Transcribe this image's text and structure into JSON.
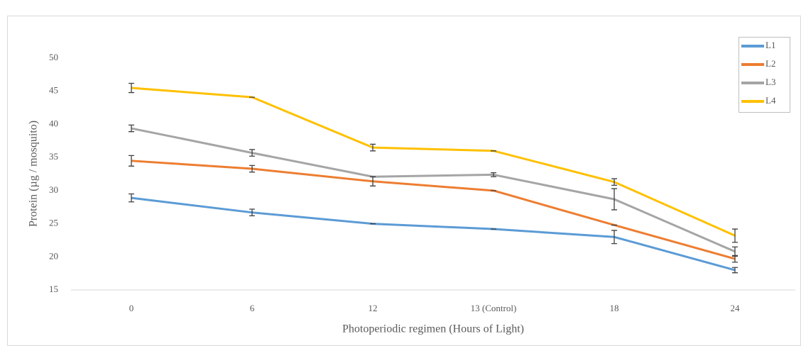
{
  "chart_data": {
    "type": "line",
    "x_label": "Photoperiodic regimen (Hours of Light)",
    "y_label": "Protein (µg / mosquito)",
    "categories": [
      "0",
      "6",
      "12",
      "13 (Control)",
      "18",
      "24"
    ],
    "series": [
      {
        "name": "L1",
        "color": "#5b9bd5",
        "values": [
          28.9,
          26.7,
          25.0,
          24.2,
          23.0,
          18.0
        ],
        "errors": [
          0.6,
          0.5,
          0,
          0,
          1.0,
          0.4
        ]
      },
      {
        "name": "L2",
        "color": "#ed7d31",
        "values": [
          34.5,
          33.3,
          31.4,
          30.0,
          24.8,
          19.7
        ],
        "errors": [
          0.8,
          0.5,
          0.7,
          0,
          0,
          0.5
        ]
      },
      {
        "name": "L3",
        "color": "#a5a5a5",
        "values": [
          39.4,
          35.7,
          32.1,
          32.4,
          28.7,
          20.8
        ],
        "errors": [
          0.5,
          0.5,
          0,
          0.3,
          1.6,
          0.7
        ]
      },
      {
        "name": "L4",
        "color": "#ffc000",
        "values": [
          45.5,
          44.1,
          36.5,
          36.0,
          31.3,
          23.2
        ],
        "errors": [
          0.7,
          0,
          0.5,
          0,
          0.5,
          1.0
        ]
      }
    ],
    "ylim": [
      15,
      50
    ],
    "yticks": [
      15,
      20,
      25,
      30,
      35,
      40,
      45,
      50
    ],
    "grid": false,
    "legend": "top-right"
  }
}
